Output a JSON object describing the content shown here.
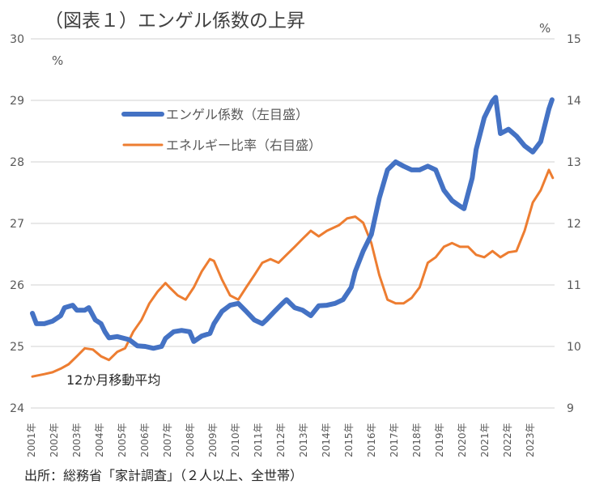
{
  "chart_data": {
    "type": "line",
    "title": "（図表１）エンゲル係数の上昇",
    "left_unit": "%",
    "right_unit": "%",
    "left_ylim": [
      24,
      30
    ],
    "right_ylim": [
      9,
      15
    ],
    "left_ticks": [
      "24",
      "25",
      "26",
      "27",
      "28",
      "29",
      "30"
    ],
    "right_ticks": [
      "9",
      "10",
      "11",
      "12",
      "13",
      "14",
      "15"
    ],
    "x_ticks": [
      "2001年",
      "2002年",
      "2003年",
      "2004年",
      "2005年",
      "2006年",
      "2007年",
      "2008年",
      "2009年",
      "2010年",
      "2011年",
      "2012年",
      "2013年",
      "2014年",
      "2015年",
      "2016年",
      "2017年",
      "2018年",
      "2019年",
      "2020年",
      "2021年",
      "2022年",
      "2023年"
    ],
    "xlim": [
      2001,
      2024.1
    ],
    "grid": true,
    "annotation": "12か月移動平均",
    "source": "出所：総務省「家計調査」（２人以上、全世帯）",
    "colors": {
      "engel": "#4472c4",
      "energy": "#ed7d31",
      "grid": "#d9d9d9",
      "text": "#595959"
    },
    "series": [
      {
        "name": "エンゲル係数（左目盛）",
        "axis": "left",
        "x": [
          2001.07,
          2001.25,
          2001.6,
          2001.96,
          2002.32,
          2002.49,
          2002.85,
          2003.03,
          2003.38,
          2003.56,
          2003.85,
          2004.1,
          2004.27,
          2004.45,
          2004.81,
          2005.34,
          2005.7,
          2006.05,
          2006.41,
          2006.77,
          2006.94,
          2007.3,
          2007.65,
          2008.01,
          2008.19,
          2008.54,
          2008.9,
          2009.08,
          2009.43,
          2009.79,
          2010.15,
          2010.5,
          2010.86,
          2011.21,
          2011.39,
          2011.75,
          2012.1,
          2012.28,
          2012.64,
          2012.99,
          2013.35,
          2013.7,
          2014.06,
          2014.42,
          2014.77,
          2015.13,
          2015.31,
          2015.66,
          2016.02,
          2016.37,
          2016.73,
          2017.09,
          2017.44,
          2017.8,
          2018.15,
          2018.51,
          2018.86,
          2019.22,
          2019.58,
          2019.93,
          2020.11,
          2020.47,
          2020.64,
          2021.0,
          2021.36,
          2021.5,
          2021.71,
          2022.07,
          2022.42,
          2022.78,
          2023.14,
          2023.49,
          2023.85,
          2023.99
        ],
        "values": [
          25.54,
          25.37,
          25.37,
          25.41,
          25.5,
          25.63,
          25.67,
          25.59,
          25.59,
          25.63,
          25.43,
          25.37,
          25.24,
          25.14,
          25.16,
          25.11,
          25.01,
          25.0,
          24.97,
          25.0,
          25.13,
          25.24,
          25.26,
          25.24,
          25.08,
          25.17,
          25.21,
          25.37,
          25.57,
          25.67,
          25.7,
          25.57,
          25.43,
          25.37,
          25.43,
          25.57,
          25.7,
          25.76,
          25.63,
          25.59,
          25.5,
          25.66,
          25.67,
          25.7,
          25.76,
          25.96,
          26.22,
          26.55,
          26.82,
          27.41,
          27.87,
          28.0,
          27.93,
          27.87,
          27.87,
          27.93,
          27.87,
          27.54,
          27.37,
          27.28,
          27.24,
          27.74,
          28.2,
          28.72,
          28.99,
          29.05,
          28.46,
          28.53,
          28.42,
          28.26,
          28.16,
          28.33,
          28.86,
          29.01
        ]
      },
      {
        "name": "エネルギー比率（右目盛）",
        "axis": "right",
        "x": [
          2001.07,
          2001.6,
          2001.96,
          2002.32,
          2002.67,
          2003.03,
          2003.38,
          2003.74,
          2004.1,
          2004.45,
          2004.81,
          2005.16,
          2005.52,
          2005.88,
          2006.23,
          2006.59,
          2006.94,
          2007.12,
          2007.48,
          2007.83,
          2008.19,
          2008.54,
          2008.9,
          2009.08,
          2009.43,
          2009.79,
          2010.15,
          2010.5,
          2010.86,
          2011.21,
          2011.57,
          2011.93,
          2012.28,
          2012.64,
          2012.99,
          2013.35,
          2013.7,
          2014.06,
          2014.59,
          2014.95,
          2015.31,
          2015.66,
          2016.02,
          2016.37,
          2016.73,
          2017.09,
          2017.44,
          2017.8,
          2018.15,
          2018.51,
          2018.86,
          2019.22,
          2019.58,
          2019.93,
          2020.29,
          2020.64,
          2021.0,
          2021.36,
          2021.71,
          2022.07,
          2022.42,
          2022.78,
          2023.14,
          2023.49,
          2023.85,
          2024.02
        ],
        "values": [
          9.51,
          9.55,
          9.58,
          9.64,
          9.71,
          9.84,
          9.97,
          9.95,
          9.84,
          9.78,
          9.91,
          9.97,
          10.24,
          10.43,
          10.7,
          10.89,
          11.03,
          10.96,
          10.83,
          10.76,
          10.96,
          11.22,
          11.42,
          11.39,
          11.09,
          10.83,
          10.76,
          10.96,
          11.16,
          11.36,
          11.42,
          11.36,
          11.49,
          11.62,
          11.75,
          11.88,
          11.79,
          11.88,
          11.97,
          12.08,
          12.11,
          12.01,
          11.68,
          11.16,
          10.76,
          10.7,
          10.7,
          10.79,
          10.96,
          11.36,
          11.45,
          11.62,
          11.68,
          11.62,
          11.62,
          11.49,
          11.45,
          11.55,
          11.45,
          11.53,
          11.55,
          11.88,
          12.34,
          12.54,
          12.87,
          12.74
        ]
      }
    ]
  }
}
